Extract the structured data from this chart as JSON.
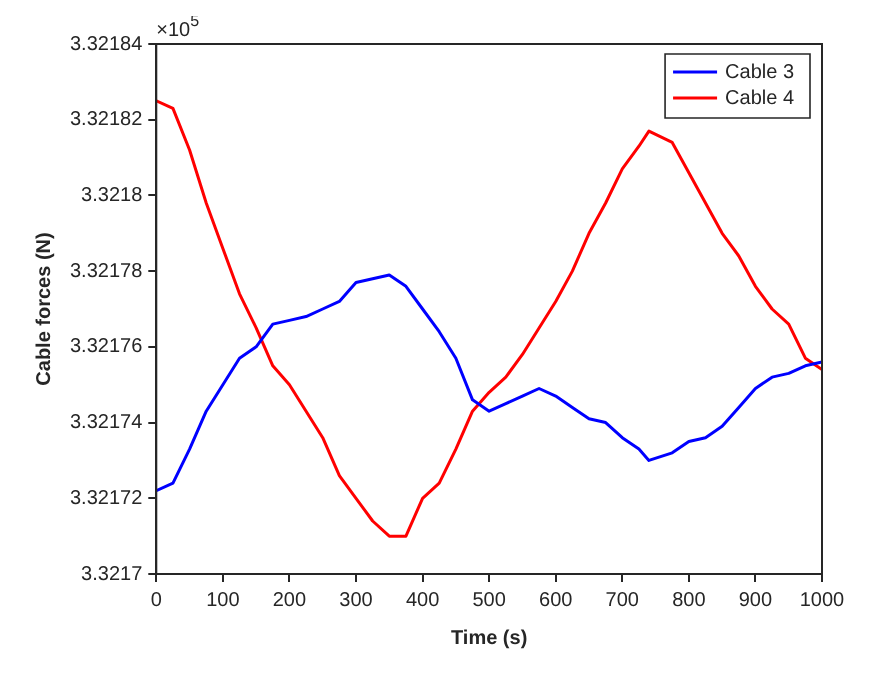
{
  "chart_data": {
    "type": "line",
    "xlabel": "Time (s)",
    "ylabel": "Cable forces (N)",
    "annotations": [
      "×10$^{5}$"
    ],
    "x": [
      0,
      25,
      50,
      75,
      100,
      125,
      150,
      175,
      200,
      225,
      250,
      275,
      300,
      325,
      350,
      375,
      400,
      425,
      450,
      475,
      500,
      525,
      550,
      575,
      600,
      625,
      650,
      675,
      700,
      725,
      740,
      775,
      800,
      825,
      850,
      875,
      900,
      925,
      950,
      975,
      1000
    ],
    "series": [
      {
        "name": "Cable 3",
        "color": "#0000ff",
        "values": [
          3.321722,
          3.321724,
          3.321733,
          3.321743,
          3.32175,
          3.321757,
          3.32176,
          3.321766,
          3.321767,
          3.321768,
          3.32177,
          3.321772,
          3.321777,
          3.321778,
          3.321779,
          3.321776,
          3.32177,
          3.321764,
          3.321757,
          3.321746,
          3.321743,
          3.321745,
          3.321747,
          3.321749,
          3.321747,
          3.321744,
          3.321741,
          3.32174,
          3.321736,
          3.321733,
          3.32173,
          3.321732,
          3.321735,
          3.321736,
          3.321739,
          3.321744,
          3.321749,
          3.321752,
          3.321753,
          3.321755,
          3.321756
        ]
      },
      {
        "name": "Cable 4",
        "color": "#ff0000",
        "values": [
          3.321825,
          3.321823,
          3.321812,
          3.321798,
          3.321786,
          3.321774,
          3.321765,
          3.321755,
          3.32175,
          3.321743,
          3.321736,
          3.321726,
          3.32172,
          3.321714,
          3.32171,
          3.32171,
          3.32172,
          3.321724,
          3.321733,
          3.321743,
          3.321748,
          3.321752,
          3.321758,
          3.321765,
          3.321772,
          3.32178,
          3.32179,
          3.321798,
          3.321807,
          3.321813,
          3.321817,
          3.321814,
          3.321806,
          3.321798,
          3.32179,
          3.321784,
          3.321776,
          3.32177,
          3.321766,
          3.321757,
          3.321754
        ]
      }
    ],
    "xlim": [
      0,
      1000
    ],
    "xticks": [
      0,
      100,
      200,
      300,
      400,
      500,
      600,
      700,
      800,
      900,
      1000
    ],
    "ylim": [
      3.3217,
      3.32184
    ],
    "yticks": [
      3.3217,
      3.32172,
      3.32174,
      3.32176,
      3.32178,
      3.3218,
      3.32182,
      3.32184
    ],
    "grid": false,
    "legend": "top right",
    "marker": "none",
    "line_style": "solid"
  }
}
